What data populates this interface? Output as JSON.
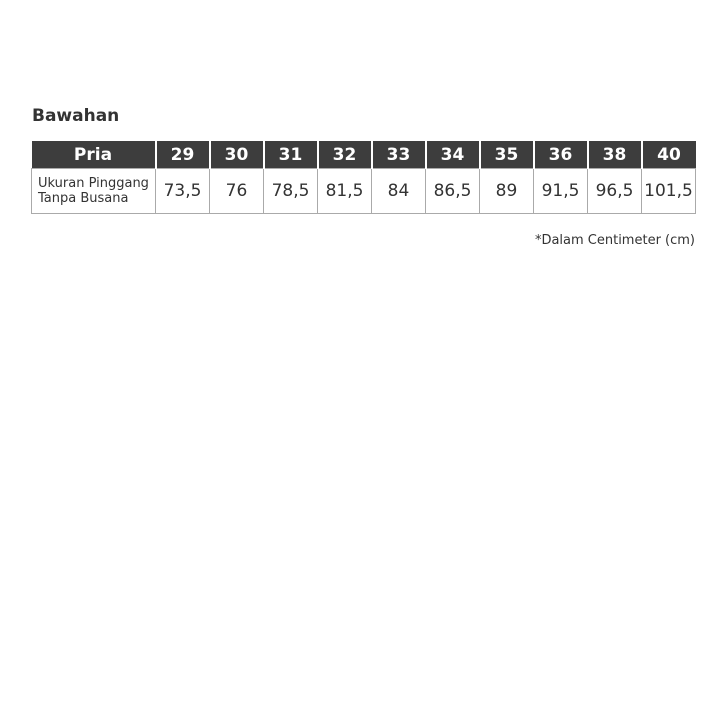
{
  "title": "Bawahan",
  "table": {
    "header": [
      "Pria",
      "29",
      "30",
      "31",
      "32",
      "33",
      "34",
      "35",
      "36",
      "38",
      "40"
    ],
    "row_label_line1": "Ukuran Pinggang",
    "row_label_line2": "Tanpa Busana",
    "values": [
      "73,5",
      "76",
      "78,5",
      "81,5",
      "84",
      "86,5",
      "89",
      "91,5",
      "96,5",
      "101,5"
    ]
  },
  "note": "*Dalam Centimeter (cm)"
}
